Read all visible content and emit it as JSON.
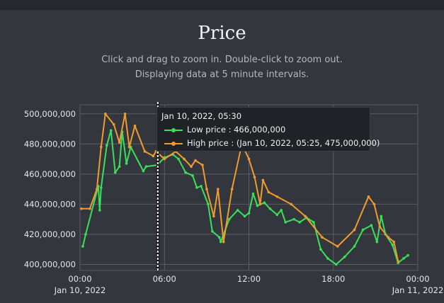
{
  "header": {
    "title": "Price",
    "subtitle_line1": "Click and drag to zoom in. Double-click to zoom out.",
    "subtitle_line2": "Displaying data at 5 minute intervals."
  },
  "tooltip": {
    "time": "Jan 10, 2022, 05:30",
    "low_label": "Low price : 466,000,000",
    "high_label": "High price : (Jan 10, 2022, 05:25, 475,000,000)"
  },
  "chart_data": {
    "type": "line",
    "x_unit": "hours since Jan 10, 2022 00:00",
    "ylim": [
      396000000,
      506000000
    ],
    "xlim": [
      0,
      24
    ],
    "y_ticks": [
      "400,000,000",
      "420,000,000",
      "440,000,000",
      "460,000,000",
      "480,000,000",
      "500,000,000"
    ],
    "y_tick_values": [
      400000000,
      420000000,
      440000000,
      460000000,
      480000000,
      500000000
    ],
    "x_ticks": [
      {
        "label": "00:00",
        "sub": "Jan 10, 2022",
        "value": 0
      },
      {
        "label": "06:00",
        "sub": "",
        "value": 6
      },
      {
        "label": "12:00",
        "sub": "",
        "value": 12
      },
      {
        "label": "18:00",
        "sub": "",
        "value": 18
      },
      {
        "label": "00:00",
        "sub": "Jan 11, 2022",
        "value": 24
      }
    ],
    "crosshair_x": 5.5,
    "series": [
      {
        "name": "Low price",
        "color": "#3ae05a",
        "points": [
          [
            0.2,
            412000000
          ],
          [
            0.4,
            420000000
          ],
          [
            1.3,
            452000000
          ],
          [
            1.4,
            436000000
          ],
          [
            1.5,
            451000000
          ],
          [
            1.9,
            479000000
          ],
          [
            2.2,
            489000000
          ],
          [
            2.5,
            461000000
          ],
          [
            2.8,
            465000000
          ],
          [
            3.0,
            488000000
          ],
          [
            3.3,
            467000000
          ],
          [
            3.6,
            478000000
          ],
          [
            4.5,
            462000000
          ],
          [
            4.7,
            465000000
          ],
          [
            5.5,
            466000000
          ],
          [
            6.0,
            471000000
          ],
          [
            6.6,
            473000000
          ],
          [
            7.0,
            470000000
          ],
          [
            7.5,
            461000000
          ],
          [
            8.0,
            459000000
          ],
          [
            8.3,
            451000000
          ],
          [
            8.6,
            452000000
          ],
          [
            9.1,
            440000000
          ],
          [
            9.4,
            422000000
          ],
          [
            9.9,
            418000000
          ],
          [
            10.0,
            415000000
          ],
          [
            10.6,
            430000000
          ],
          [
            11.2,
            436000000
          ],
          [
            11.7,
            432000000
          ],
          [
            12.0,
            434000000
          ],
          [
            12.3,
            447000000
          ],
          [
            12.6,
            439000000
          ],
          [
            13.1,
            441000000
          ],
          [
            13.5,
            437000000
          ],
          [
            14.0,
            433000000
          ],
          [
            14.3,
            436000000
          ],
          [
            14.6,
            428000000
          ],
          [
            15.2,
            430000000
          ],
          [
            15.6,
            428000000
          ],
          [
            16.1,
            431000000
          ],
          [
            16.6,
            428000000
          ],
          [
            17.1,
            410000000
          ],
          [
            17.6,
            404000000
          ],
          [
            18.2,
            400000000
          ],
          [
            18.8,
            405000000
          ],
          [
            19.5,
            412000000
          ],
          [
            20.1,
            423000000
          ],
          [
            20.7,
            426000000
          ],
          [
            21.1,
            415000000
          ],
          [
            21.4,
            432000000
          ],
          [
            21.7,
            420000000
          ],
          [
            22.2,
            413000000
          ],
          [
            22.6,
            401000000
          ],
          [
            23.0,
            404000000
          ],
          [
            23.3,
            406000000
          ]
        ]
      },
      {
        "name": "High price",
        "color": "#f09a30",
        "points": [
          [
            0.1,
            437000000
          ],
          [
            0.7,
            437000000
          ],
          [
            1.2,
            450000000
          ],
          [
            1.5,
            478000000
          ],
          [
            1.8,
            500000000
          ],
          [
            2.4,
            493000000
          ],
          [
            2.8,
            481000000
          ],
          [
            3.2,
            500000000
          ],
          [
            3.5,
            478000000
          ],
          [
            3.9,
            492000000
          ],
          [
            4.6,
            475000000
          ],
          [
            5.2,
            472000000
          ],
          [
            5.4,
            475000000
          ],
          [
            6.0,
            470000000
          ],
          [
            6.8,
            475000000
          ],
          [
            7.4,
            470000000
          ],
          [
            7.9,
            465000000
          ],
          [
            8.2,
            469000000
          ],
          [
            8.7,
            466000000
          ],
          [
            9.0,
            450000000
          ],
          [
            9.5,
            432000000
          ],
          [
            9.8,
            450000000
          ],
          [
            10.2,
            415000000
          ],
          [
            10.8,
            450000000
          ],
          [
            11.5,
            480000000
          ],
          [
            12.0,
            470000000
          ],
          [
            12.4,
            458000000
          ],
          [
            12.8,
            440000000
          ],
          [
            13.0,
            456000000
          ],
          [
            13.4,
            448000000
          ],
          [
            14.0,
            445000000
          ],
          [
            15.0,
            440000000
          ],
          [
            16.0,
            432000000
          ],
          [
            17.2,
            418000000
          ],
          [
            18.3,
            412000000
          ],
          [
            19.5,
            423000000
          ],
          [
            20.5,
            445000000
          ],
          [
            20.9,
            440000000
          ],
          [
            21.3,
            425000000
          ],
          [
            21.9,
            418000000
          ],
          [
            22.3,
            415000000
          ],
          [
            22.6,
            402000000
          ]
        ]
      }
    ]
  }
}
